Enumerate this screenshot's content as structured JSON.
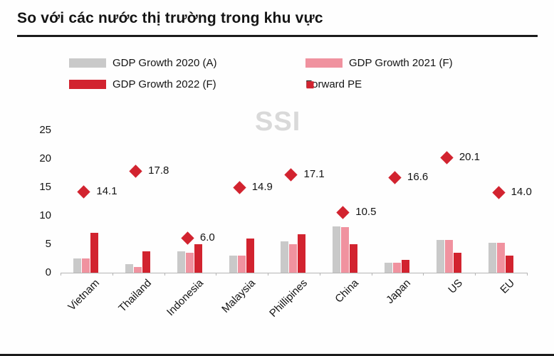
{
  "page": {
    "title": "So với các nước thị trường trong khu vực",
    "watermark": "SSI"
  },
  "legend": {
    "items": [
      {
        "label": "GDP Growth 2020 (A)",
        "type": "box",
        "color": "#c9c9c9"
      },
      {
        "label": "GDP Growth 2021 (F)",
        "type": "box",
        "color": "#f0929f"
      },
      {
        "label": "GDP Growth 2022 (F)",
        "type": "box",
        "color": "#d2232f"
      },
      {
        "label": "Forward PE",
        "type": "diamond",
        "color": "#d2232f"
      }
    ]
  },
  "chart_data": {
    "type": "bar",
    "title": "So với các nước thị trường trong khu vực",
    "categories": [
      "Vietnam",
      "Thailand",
      "Indonesia",
      "Malaysia",
      "Phillipines",
      "China",
      "Japan",
      "US",
      "EU"
    ],
    "series": [
      {
        "name": "GDP Growth 2020 (A)",
        "color": "#c9c9c9",
        "values": [
          2.5,
          1.5,
          3.7,
          3.0,
          5.5,
          8.1,
          1.8,
          5.7,
          5.2
        ]
      },
      {
        "name": "GDP Growth 2021 (F)",
        "color": "#f0929f",
        "values": [
          2.5,
          1.0,
          3.5,
          3.0,
          5.0,
          8.0,
          1.7,
          5.7,
          5.2
        ]
      },
      {
        "name": "GDP Growth 2022 (F)",
        "color": "#d2232f",
        "values": [
          7.0,
          3.7,
          5.0,
          6.0,
          6.7,
          5.0,
          2.3,
          3.5,
          3.0
        ]
      }
    ],
    "points": {
      "name": "Forward PE",
      "color": "#d2232f",
      "values": [
        14.1,
        17.8,
        6.0,
        14.9,
        17.1,
        10.5,
        16.6,
        20.1,
        14.0
      ]
    },
    "yticks": [
      0,
      5,
      10,
      15,
      20,
      25
    ],
    "ylim": [
      0,
      25
    ],
    "grid": false,
    "legend_position": "top"
  }
}
